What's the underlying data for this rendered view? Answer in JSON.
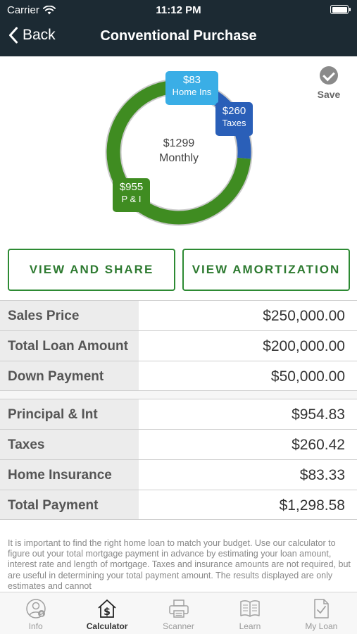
{
  "status_bar": {
    "carrier": "Carrier",
    "time": "11:12 PM"
  },
  "nav": {
    "back_label": "Back",
    "title": "Conventional Purchase"
  },
  "save": {
    "label": "Save"
  },
  "chart_data": {
    "type": "pie",
    "center": {
      "amount": "$1299",
      "label": "Monthly"
    },
    "slices": [
      {
        "label": "P & I",
        "display_value": "$955",
        "value": 954.83,
        "color": "#3f8c21"
      },
      {
        "label": "Taxes",
        "display_value": "$260",
        "value": 260.42,
        "color": "#2a5fb8"
      },
      {
        "label": "Home Ins",
        "display_value": "$83",
        "value": 83.33,
        "color": "#3aaee6"
      }
    ]
  },
  "buttons": {
    "view_and_share": "VIEW AND SHARE",
    "view_amortization": "VIEW AMORTIZATION"
  },
  "loan_table": [
    {
      "label": "Sales Price",
      "value": "$250,000.00"
    },
    {
      "label": "Total Loan Amount",
      "value": "$200,000.00"
    },
    {
      "label": "Down Payment",
      "value": "$50,000.00"
    }
  ],
  "payment_table": [
    {
      "label": "Principal & Int",
      "value": "$954.83"
    },
    {
      "label": "Taxes",
      "value": "$260.42"
    },
    {
      "label": "Home Insurance",
      "value": "$83.33"
    },
    {
      "label": "Total Payment",
      "value": "$1,298.58"
    }
  ],
  "disclaimer": "It is important to find the right home loan to match your budget. Use our calculator to figure out your total mortgage payment in advance by estimating your loan amount, interest rate and length of mortgage. Taxes and insurance amounts are not required, but are useful in determining your total payment amount.  The results displayed are only estimates and cannot",
  "tabs": [
    {
      "label": "Info",
      "icon": "person-dollar-icon",
      "active": false
    },
    {
      "label": "Calculator",
      "icon": "house-dollar-icon",
      "active": true
    },
    {
      "label": "Scanner",
      "icon": "printer-icon",
      "active": false
    },
    {
      "label": "Learn",
      "icon": "book-icon",
      "active": false
    },
    {
      "label": "My Loan",
      "icon": "document-check-icon",
      "active": false
    }
  ],
  "colors": {
    "header_bg": "#1c2a33",
    "accent_green": "#2d8a33"
  }
}
